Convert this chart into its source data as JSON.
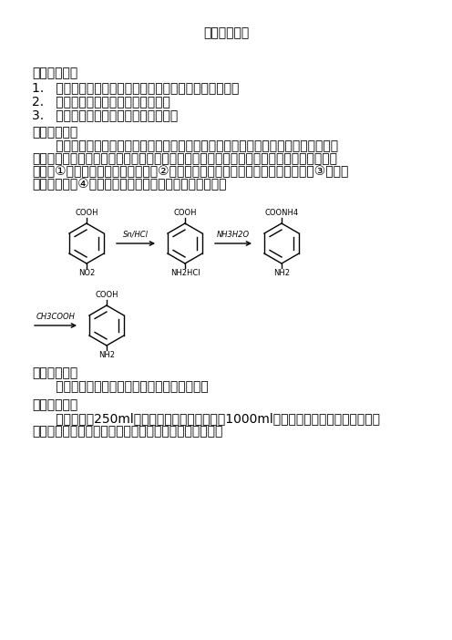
{
  "title": "实验设计报告",
  "section1_header": "一、实验目的",
  "section1_items": [
    "1.   通过对硝基苯甲酸的还原，了解有机合成的基本过程；",
    "2.   掌握还原反应的原理及基本操作；",
    "3.   由对硝基苯甲酸制备对氨基苯甲酸。"
  ],
  "section2_header": "二、实验原理",
  "section2_lines": [
    "      金属还原法，尤其铁粉还原法适用面广、操作简单、还原效率高、选择性好、产品质",
    "量好，尤其对品质有特殊要求的芳胺的制备，仍有优越性。适宜于采用铁粉还原法生产的胺",
    "类有：①容易被水蒸气蒸出的芳胺；②易溶于水，并且可以通过蒸馏分离的芳胺；③能溶于",
    "热水的芳胺；④含磺酸基或羧酸基等水溶性基团的芳胺。"
  ],
  "section3_header": "三、实验试剂",
  "section3_body": "      对硝基苯甲酸、锡粉、浓盐酸、氨水、冰醋酸",
  "section4_header": "四、实验仪器",
  "section4_lines": [
    "      三口烧瓶（250ml）、电子天平、四口烧瓶（1000ml）球形冷凝管、搅拌搅拌装置、",
    "油浴加热装置、布氏漏斗、抽滤瓶、水泵、玻璃棒、烧杯"
  ],
  "bg_color": "#ffffff",
  "text_color": "#000000",
  "chem_labels_row1": [
    "COOH",
    "NO2",
    "COOH",
    "NH2HCl",
    "COONH4",
    "NH2"
  ],
  "arrow1_label": "Sn/HCl",
  "arrow2_label": "NH3H2O",
  "arrow3_label": "CH3COOH",
  "chem_labels_row2": [
    "COOH",
    "NH2"
  ]
}
